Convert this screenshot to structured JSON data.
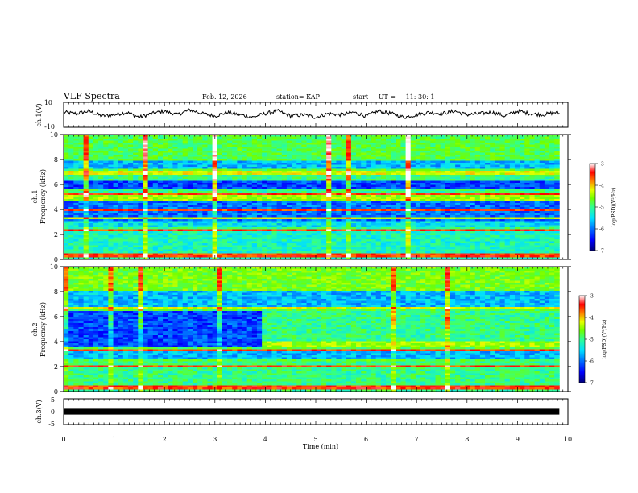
{
  "header": {
    "title": "VLF Spectra",
    "date": "Feb. 12, 2026",
    "station": "station= KAP",
    "start_label": "start",
    "ut_label": "UT =",
    "start_time": "11: 30: 1"
  },
  "colors": {
    "cmap": [
      "#00007a",
      "#0000ff",
      "#0070ff",
      "#00e0ff",
      "#30ff90",
      "#70ff00",
      "#e8ff00",
      "#ff8000",
      "#ff0000",
      "#ffffff"
    ],
    "trace": "#000000"
  },
  "chart_data": [
    {
      "id": "ch1-voltage",
      "type": "line",
      "ylabel": "ch.1(V)",
      "ylim": [
        -10,
        10
      ],
      "yticks": [
        "10",
        "-10"
      ],
      "xlim": [
        0,
        10
      ],
      "description_of_series": "noisy waveform fluctuating between about -3 and 5 V",
      "series": [
        {
          "name": "ch.1",
          "x": [
            0,
            0.25,
            0.5,
            0.75,
            1,
            1.25,
            1.5,
            1.75,
            2,
            2.25,
            2.5,
            2.75,
            3,
            3.25,
            3.5,
            3.75,
            4,
            4.25,
            4.5,
            4.75,
            5,
            5.25,
            5.5,
            5.75,
            6,
            6.25,
            6.5,
            6.75,
            7,
            7.25,
            7.5,
            7.75,
            8,
            8.25,
            8.5,
            8.75,
            9,
            9.25,
            9.5,
            9.75,
            9.83
          ],
          "y": [
            2,
            1,
            3,
            -1,
            0,
            2,
            -2,
            1,
            3,
            0,
            4,
            1,
            -1,
            2,
            0,
            -2,
            1,
            3,
            -1,
            0,
            -2,
            1,
            0,
            2,
            -1,
            3,
            1,
            -2,
            0,
            2,
            1,
            3,
            0,
            1,
            2,
            -1,
            3,
            1,
            0,
            2,
            1
          ]
        }
      ]
    },
    {
      "id": "ch1-spectrogram",
      "type": "heatmap",
      "ylabel": "ch.1 Frequency (kHz)",
      "ylim": [
        0,
        10
      ],
      "yticks": [
        "0",
        "2",
        "4",
        "6",
        "8",
        "10"
      ],
      "xlim": [
        0,
        10
      ],
      "data_extent_x": [
        0,
        9.83
      ],
      "colorbar": {
        "label": "log(PSD)(V^2/Hz)",
        "range": [
          -7,
          -3
        ],
        "ticks": [
          "-3",
          "-4",
          "-5",
          "-6",
          "-7"
        ]
      }
    },
    {
      "id": "ch2-spectrogram",
      "type": "heatmap",
      "ylabel": "ch.2 Frequency (kHz)",
      "ylim": [
        0,
        10
      ],
      "yticks": [
        "0",
        "2",
        "4",
        "6",
        "8",
        "10"
      ],
      "xlim": [
        0,
        10
      ],
      "data_extent_x": [
        0,
        9.83
      ],
      "colorbar": {
        "label": "log(PSD)(V^2/Hz)",
        "range": [
          -7,
          -3
        ],
        "ticks": [
          "-3",
          "-4",
          "-5",
          "-6",
          "-7"
        ]
      }
    },
    {
      "id": "ch3-voltage",
      "type": "line",
      "ylabel": "ch.3(V)",
      "ylim": [
        -5,
        5
      ],
      "yticks": [
        "5",
        "0",
        "-5"
      ],
      "xlim": [
        0,
        10
      ],
      "xlabel": "Time  (min)",
      "xticks": [
        "0",
        "1",
        "2",
        "3",
        "4",
        "5",
        "6",
        "7",
        "8",
        "9",
        "10"
      ],
      "series": [
        {
          "name": "ch.3",
          "x": [
            0,
            9.83
          ],
          "y": [
            0,
            0
          ],
          "band": [
            -0.5,
            0.5
          ]
        }
      ]
    }
  ],
  "axis_labels": {
    "ch1_v": "ch.1(V)",
    "ch1_spec_a": "ch.1",
    "ch1_spec_b": "Frequency  (kHz)",
    "ch2_spec_a": "ch.2",
    "ch2_spec_b": "Frequency  (kHz)",
    "ch3_v": "ch.3(V)",
    "time": "Time  (min)",
    "colorbar": "log(PSD)(V²/Hz)"
  }
}
